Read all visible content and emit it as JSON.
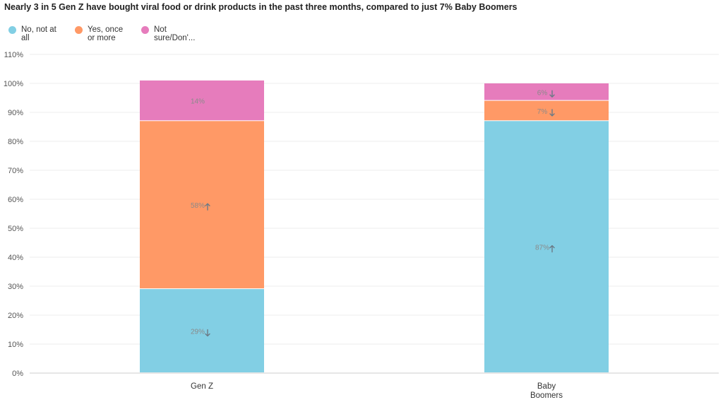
{
  "chart_data": {
    "type": "bar",
    "stacked": true,
    "title": "Nearly 3 in 5 Gen Z have bought viral food or drink products in the past three months, compared to just 7% Baby Boomers",
    "categories": [
      [
        "Gen Z"
      ],
      [
        "Baby",
        "Boomers"
      ]
    ],
    "series": [
      {
        "name": "No, not at all",
        "legend_lines": [
          "No, not at",
          "all"
        ],
        "color": "#82cfe4",
        "values": [
          29,
          87
        ],
        "labels": [
          "29%",
          "87%"
        ],
        "arrows": [
          "down",
          "up"
        ]
      },
      {
        "name": "Yes, once or more",
        "legend_lines": [
          "Yes, once",
          "or more"
        ],
        "color": "#ff9966",
        "values": [
          58,
          7
        ],
        "labels": [
          "58%",
          "7%"
        ],
        "arrows": [
          "up",
          "down"
        ]
      },
      {
        "name": "Not sure/Don'...",
        "legend_lines": [
          "Not",
          "sure/Don'..."
        ],
        "color": "#e67cbc",
        "values": [
          14,
          6
        ],
        "labels": [
          "14%",
          "6%"
        ],
        "arrows": [
          null,
          "down"
        ]
      }
    ],
    "ylim": [
      0,
      110
    ],
    "yticks": [
      0,
      10,
      20,
      30,
      40,
      50,
      60,
      70,
      80,
      90,
      100,
      110
    ],
    "ytick_labels": [
      "0%",
      "10%",
      "20%",
      "30%",
      "40%",
      "50%",
      "60%",
      "70%",
      "80%",
      "90%",
      "100%",
      "110%"
    ],
    "xlabel": "",
    "ylabel": "",
    "grid": true,
    "legend_position": "top-left"
  }
}
